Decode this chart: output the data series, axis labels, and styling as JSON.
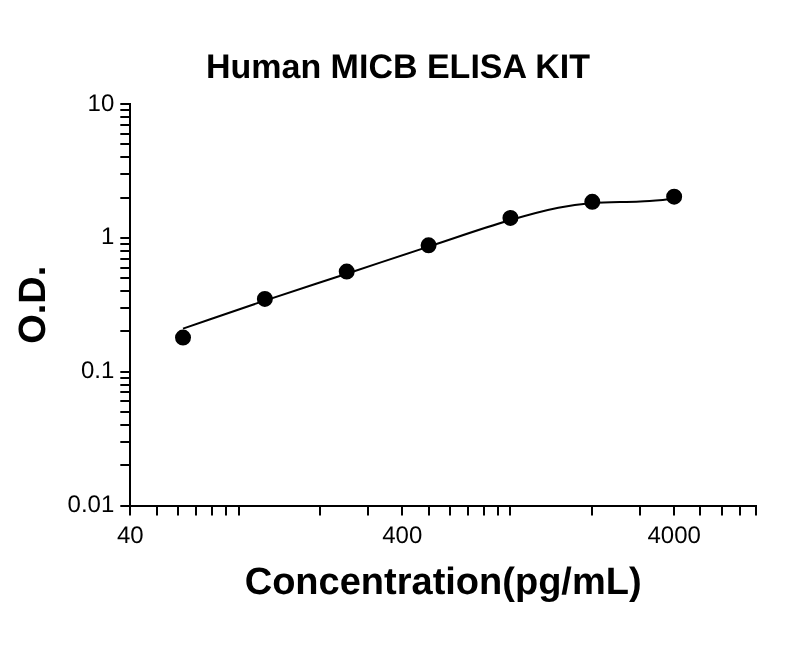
{
  "chart_data": {
    "type": "scatter",
    "title": "Human MICB ELISA KIT",
    "xlabel": "Concentration(pg/mL)",
    "ylabel": "O.D.",
    "log": "xy",
    "grid": false,
    "legend": false,
    "xlim": [
      40,
      8000
    ],
    "ylim": [
      0.01,
      10
    ],
    "xticks": [
      40,
      {
        "value": 50,
        "label": null
      },
      {
        "value": 60,
        "label": null
      },
      {
        "value": 70,
        "label": null
      },
      {
        "value": 80,
        "label": null
      },
      {
        "value": 90,
        "label": null
      },
      {
        "value": 100,
        "label": null
      },
      {
        "value": 200,
        "label": null
      },
      {
        "value": 300,
        "label": null
      },
      400,
      {
        "value": 500,
        "label": null
      },
      {
        "value": 600,
        "label": null
      },
      {
        "value": 700,
        "label": null
      },
      {
        "value": 800,
        "label": null
      },
      {
        "value": 900,
        "label": null
      },
      {
        "value": 1000,
        "label": null
      },
      {
        "value": 2000,
        "label": null
      },
      {
        "value": 3000,
        "label": null
      },
      4000,
      {
        "value": 5000,
        "label": null
      },
      {
        "value": 6000,
        "label": null
      },
      {
        "value": 7000,
        "label": null
      },
      {
        "value": 8000,
        "label": null
      }
    ],
    "yticks": [
      0.01,
      {
        "value": 0.02,
        "label": null
      },
      {
        "value": 0.03,
        "label": null
      },
      {
        "value": 0.04,
        "label": null
      },
      {
        "value": 0.05,
        "label": null
      },
      {
        "value": 0.06,
        "label": null
      },
      {
        "value": 0.07,
        "label": null
      },
      {
        "value": 0.08,
        "label": null
      },
      {
        "value": 0.09,
        "label": null
      },
      0.1,
      {
        "value": 0.2,
        "label": null
      },
      {
        "value": 0.3,
        "label": null
      },
      {
        "value": 0.4,
        "label": null
      },
      {
        "value": 0.5,
        "label": null
      },
      {
        "value": 0.6,
        "label": null
      },
      {
        "value": 0.7,
        "label": null
      },
      {
        "value": 0.8,
        "label": null
      },
      {
        "value": 0.9,
        "label": null
      },
      1,
      {
        "value": 2,
        "label": null
      },
      {
        "value": 3,
        "label": null
      },
      {
        "value": 4,
        "label": null
      },
      {
        "value": 5,
        "label": null
      },
      {
        "value": 6,
        "label": null
      },
      {
        "value": 7,
        "label": null
      },
      {
        "value": 8,
        "label": null
      },
      {
        "value": 9,
        "label": null
      },
      10
    ],
    "series": [
      {
        "color": "#000000",
        "marker": "circle",
        "x": [
          62.5,
          125,
          250,
          500,
          1000,
          2000,
          4000
        ],
        "values": [
          0.18,
          0.35,
          0.56,
          0.88,
          1.41,
          1.86,
          2.03
        ]
      },
      {
        "type": "line",
        "color": "#000000",
        "marker": "none",
        "x": [
          62.5,
          125,
          250,
          500,
          1000,
          1500,
          2000,
          3000,
          4000
        ],
        "values": [
          0.21,
          0.34,
          0.54,
          0.86,
          1.36,
          1.68,
          1.82,
          1.87,
          1.95
        ]
      }
    ]
  }
}
